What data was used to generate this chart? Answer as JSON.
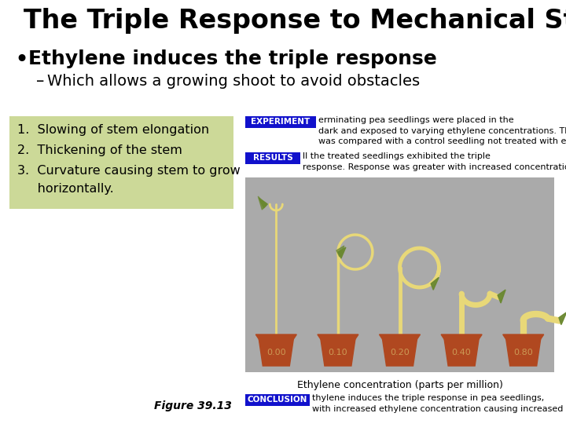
{
  "title": "The Triple Response to Mechanical Stress",
  "bullet1": "Ethylene induces the triple response",
  "bullet2": "Which allows a growing shoot to avoid obstacles",
  "list_item1": "1.  Slowing of stem elongation",
  "list_item2": "2.  Thickening of the stem",
  "list_item3": "3.  Curvature causing stem to grow",
  "list_item3b": "     horizontally.",
  "list_bg_color": "#ccd998",
  "experiment_label": "EXPERIMENT",
  "experiment_label_bg": "#1111cc",
  "experiment_text": "erminating pea seedlings were placed in the\ndark and exposed to varying ethylene concentrations. Their growth\nwas compared with a control seedling not treated with ethylene.",
  "results_label": "RESULTS",
  "results_label_bg": "#1111cc",
  "results_text": "ll the treated seedlings exhibited the triple\nresponse. Response was greater with increased concentration.",
  "figure_label": "Figure 39.13",
  "conclusion_label": "CONCLUSION",
  "conclusion_label_bg": "#1111cc",
  "conclusion_text": "thylene induces the triple response in pea seedlings,\nwith increased ethylene concentration causing increased response.",
  "image_bg": "#aaaaaa",
  "ethylene_label": "Ethylene concentration (parts per million)",
  "concentrations": [
    "0.00",
    "0.10",
    "0.20",
    "0.40",
    "0.80"
  ],
  "pot_color": "#b04820",
  "pot_text_color": "#cc9955",
  "stem_color": "#e8d878",
  "leaf_color": "#6a8830",
  "bg_color": "#ffffff"
}
